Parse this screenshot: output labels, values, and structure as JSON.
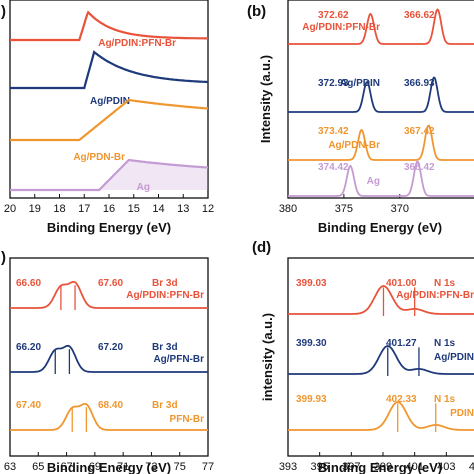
{
  "figure": {
    "panel_letters": [
      "(b)",
      "(d)"
    ],
    "partial_letters": [
      ")",
      ")"
    ]
  },
  "chart_data": [
    {
      "panel": "a",
      "type": "line",
      "xlabel": "Binding Energy (eV)",
      "ylabel": "",
      "xlim": [
        20,
        12
      ],
      "xticks": [
        "20",
        "19",
        "18",
        "17",
        "16",
        "15",
        "14",
        "13",
        "12"
      ],
      "grid": false,
      "series": [
        {
          "name": "Ag/PDIN:PFN-Br",
          "color": "#e8533a",
          "onset": 17.2,
          "peak": 16.85,
          "tail": 0.05
        },
        {
          "name": "Ag/PDIN",
          "color": "#1f3a7a",
          "onset": 17.0,
          "peak": 16.6,
          "tail": 0.12
        },
        {
          "name": "Ag/PDN-Br",
          "color": "#f0962f",
          "onset": 17.2,
          "peak": 15.2,
          "tail": 0.55
        },
        {
          "name": "Ag",
          "color": "#c49bd3",
          "onset": 16.4,
          "peak": 15.2,
          "tail": 0.5
        }
      ]
    },
    {
      "panel": "b",
      "type": "line",
      "xlabel": "Binding Energy (eV)",
      "ylabel": "Intensity (a.u.)",
      "xlim": [
        380,
        363
      ],
      "xticks": [
        "380",
        "375",
        "370"
      ],
      "grid": false,
      "series": [
        {
          "name": "Ag/PDIN:PFN-Br",
          "color": "#e8533a",
          "peaks": [
            372.62,
            366.62
          ],
          "labels": [
            "372.62",
            "366.62"
          ]
        },
        {
          "name": "Ag/PDIN",
          "color": "#1f3a7a",
          "peaks": [
            372.93,
            366.93
          ],
          "labels": [
            "372.93",
            "366.93"
          ]
        },
        {
          "name": "Ag/PDN-Br",
          "color": "#f0962f",
          "peaks": [
            373.42,
            367.42
          ],
          "labels": [
            "373.42",
            "367.42"
          ]
        },
        {
          "name": "Ag",
          "color": "#c49bd3",
          "peaks": [
            374.42,
            368.42
          ],
          "labels": [
            "374.42",
            "368.42"
          ]
        }
      ]
    },
    {
      "panel": "c",
      "type": "line",
      "xlabel": "Binding Energy (eV)",
      "ylabel": "",
      "xlim": [
        63,
        77
      ],
      "xticks": [
        "63",
        "65",
        "67",
        "69",
        "71",
        "73",
        "75",
        "77"
      ],
      "grid": false,
      "series": [
        {
          "name": "Ag/PDIN:PFN-Br",
          "color": "#e8533a",
          "peaks": [
            66.6,
            67.6
          ],
          "labels": [
            "66.60",
            "67.60"
          ],
          "core": "Br 3d"
        },
        {
          "name": "Ag/PFN-Br",
          "color": "#1f3a7a",
          "peaks": [
            66.2,
            67.2
          ],
          "labels": [
            "66.20",
            "67.20"
          ],
          "core": "Br 3d"
        },
        {
          "name": "PFN-Br",
          "color": "#f0962f",
          "peaks": [
            67.4,
            68.4
          ],
          "labels": [
            "67.40",
            "68.40"
          ],
          "core": "Br 3d"
        }
      ]
    },
    {
      "panel": "d",
      "type": "line",
      "xlabel": "Binding Energy (eV)",
      "ylabel": "intensity (a.u.)",
      "xlim": [
        393,
        405
      ],
      "xticks": [
        "393",
        "395",
        "397",
        "399",
        "401",
        "403",
        "405"
      ],
      "grid": false,
      "series": [
        {
          "name": "Ag/PDIN:PFN-Br",
          "color": "#e8533a",
          "peaks": [
            399.03,
            401.0
          ],
          "labels": [
            "399.03",
            "401.00"
          ],
          "core": "N 1s"
        },
        {
          "name": "Ag/PDIN",
          "color": "#1f3a7a",
          "peaks": [
            399.3,
            401.27
          ],
          "labels": [
            "399.30",
            "401.27"
          ],
          "core": "N 1s"
        },
        {
          "name": "PDIN",
          "color": "#f0962f",
          "peaks": [
            399.93,
            402.33
          ],
          "labels": [
            "399.93",
            "402.33"
          ],
          "core": "N 1s"
        }
      ]
    }
  ]
}
